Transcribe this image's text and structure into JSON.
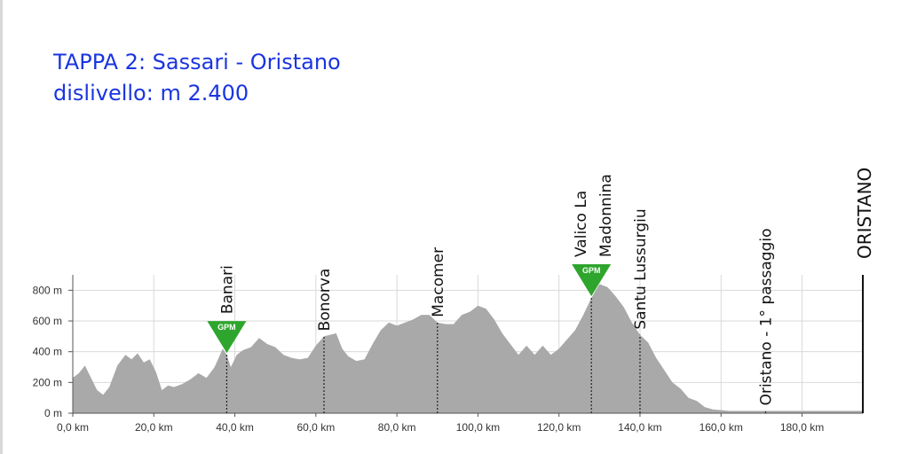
{
  "header": {
    "title": "TAPPA 2: Sassari - Oristano",
    "subtitle": "dislivello: m 2.400"
  },
  "chart_data": {
    "type": "area",
    "title": "TAPPA 2: Sassari - Oristano",
    "subtitle": "dislivello: m 2.400",
    "xlabel": "",
    "ylabel": "",
    "xlim": [
      0,
      195
    ],
    "ylim": [
      0,
      900
    ],
    "x_ticks": [
      0,
      20,
      40,
      60,
      80,
      100,
      120,
      140,
      160,
      180
    ],
    "x_tick_labels": [
      "0,0 km",
      "20,0 km",
      "40,0 km",
      "60,0 km",
      "80,0 km",
      "100,0 km",
      "120,0 km",
      "140,0 km",
      "160,0 km",
      "180,0 km"
    ],
    "y_ticks": [
      0,
      200,
      400,
      600,
      800
    ],
    "y_tick_labels": [
      "0 m",
      "200 m",
      "400 m",
      "600 m",
      "800 m"
    ],
    "grid": true,
    "area_color": "#a9a9a9",
    "gpm_color": "#2ea52c",
    "series": [
      {
        "x": [
          0,
          1.5,
          3,
          4.5,
          6,
          7.5,
          9,
          11,
          13,
          14.5,
          16,
          17.5,
          19,
          20.5,
          22,
          23.5,
          25,
          27,
          29,
          31,
          33,
          35,
          37,
          38,
          39,
          40.5,
          42,
          44,
          46,
          48,
          50,
          52,
          54,
          56,
          58,
          60,
          62,
          63.5,
          65,
          66.5,
          68,
          70,
          72,
          74,
          76,
          78,
          80,
          82,
          84,
          86,
          88,
          90,
          92,
          94,
          96,
          98,
          100,
          102,
          104,
          106,
          108,
          110,
          112,
          114,
          116,
          118,
          120,
          122,
          124,
          126,
          128,
          130,
          132,
          134,
          136,
          138,
          140,
          142,
          144,
          146,
          148,
          150,
          152,
          154,
          156,
          158,
          160,
          162,
          164,
          166,
          168,
          170,
          172,
          174,
          176,
          178,
          180,
          182,
          184,
          186,
          188,
          190,
          192,
          195
        ],
        "values": [
          230,
          260,
          310,
          230,
          150,
          120,
          170,
          310,
          380,
          350,
          390,
          330,
          350,
          270,
          150,
          180,
          170,
          190,
          220,
          260,
          230,
          300,
          420,
          380,
          300,
          380,
          410,
          430,
          490,
          450,
          430,
          380,
          360,
          350,
          360,
          440,
          500,
          510,
          520,
          420,
          370,
          340,
          350,
          450,
          540,
          590,
          570,
          590,
          610,
          640,
          640,
          590,
          580,
          580,
          640,
          660,
          700,
          680,
          610,
          520,
          450,
          380,
          440,
          380,
          440,
          380,
          420,
          480,
          540,
          640,
          750,
          840,
          820,
          760,
          690,
          590,
          510,
          460,
          360,
          280,
          200,
          160,
          100,
          80,
          40,
          25,
          20,
          15,
          15,
          15,
          15,
          15,
          15,
          15,
          15,
          15,
          15,
          15,
          15,
          15,
          15,
          15,
          15,
          15
        ]
      }
    ],
    "places": [
      {
        "label": "Banari",
        "km": 38,
        "gpm": true
      },
      {
        "label": "Bonorva",
        "km": 62
      },
      {
        "label": "Macomer",
        "km": 90
      },
      {
        "label": "Valico La",
        "label2": "Madonnina",
        "km": 128,
        "gpm": true
      },
      {
        "label": "Santu Lussurgiu",
        "km": 140
      },
      {
        "label": "Oristano - 1° passaggio",
        "km": 171
      },
      {
        "label": "ORISTANO",
        "km": 195,
        "finish": true
      }
    ],
    "gpm_label": "GPM"
  }
}
